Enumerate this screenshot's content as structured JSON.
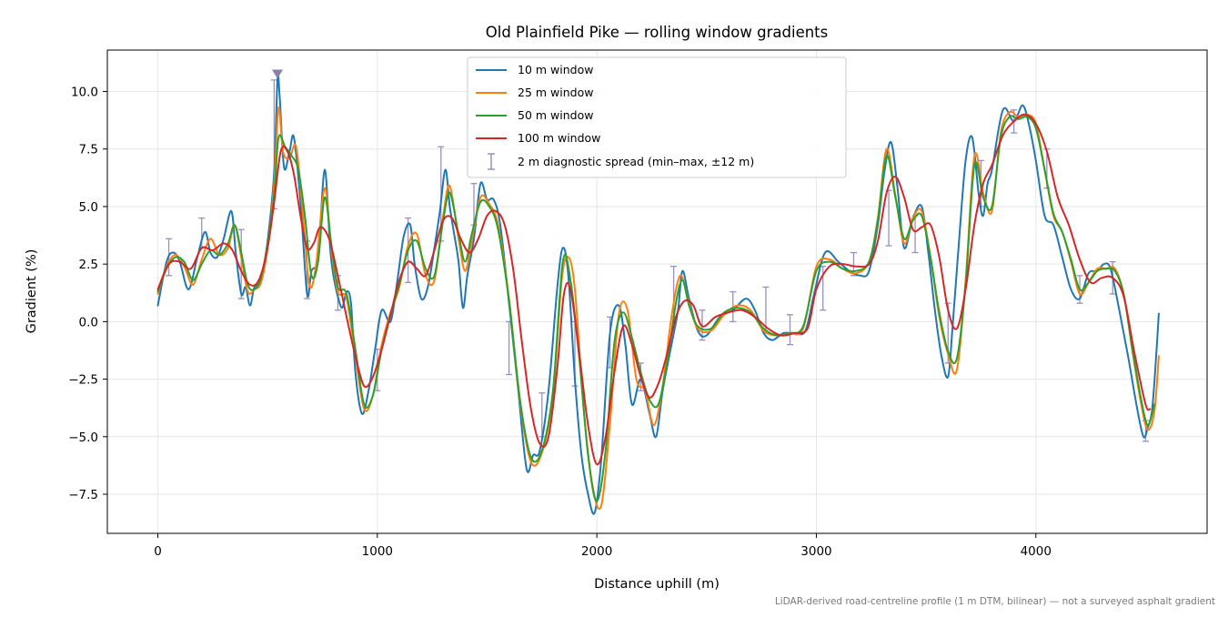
{
  "chart_data": {
    "type": "line",
    "title": "Old Plainfield Pike — rolling window gradients",
    "xlabel": "Distance uphill (m)",
    "ylabel": "Gradient (%)",
    "xlim": [
      -230,
      4780
    ],
    "ylim": [
      -9.2,
      11.8
    ],
    "xticks": [
      0,
      1000,
      2000,
      3000,
      4000
    ],
    "xtick_labels": [
      "0",
      "1000",
      "2000",
      "3000",
      "4000"
    ],
    "yticks": [
      -7.5,
      -5.0,
      -2.5,
      0.0,
      2.5,
      5.0,
      7.5,
      10.0
    ],
    "ytick_labels": [
      "−7.5",
      "−5.0",
      "−2.5",
      "0.0",
      "2.5",
      "5.0",
      "7.5",
      "10.0"
    ],
    "grid": true,
    "legend_position": "upper-center",
    "footnote": "LiDAR-derived road-centreline profile (1 m DTM, bilinear) — not a surveyed asphalt gradient",
    "series": [
      {
        "name": "10 m window",
        "color": "#1f77b4",
        "x": [
          0,
          40,
          70,
          100,
          140,
          180,
          215,
          240,
          270,
          300,
          335,
          355,
          380,
          400,
          420,
          440,
          470,
          500,
          530,
          545,
          555,
          575,
          600,
          620,
          650,
          680,
          700,
          730,
          760,
          785,
          800,
          820,
          840,
          860,
          880,
          900,
          930,
          960,
          990,
          1020,
          1060,
          1090,
          1120,
          1150,
          1170,
          1200,
          1230,
          1260,
          1285,
          1310,
          1330,
          1350,
          1370,
          1390,
          1410,
          1440,
          1470,
          1500,
          1530,
          1560,
          1600,
          1640,
          1680,
          1710,
          1740,
          1780,
          1820,
          1845,
          1870,
          1900,
          1930,
          1960,
          1990,
          2020,
          2060,
          2100,
          2130,
          2160,
          2200,
          2240,
          2270,
          2300,
          2340,
          2370,
          2390,
          2420,
          2460,
          2500,
          2560,
          2620,
          2680,
          2720,
          2760,
          2800,
          2850,
          2900,
          2950,
          2990,
          3040,
          3100,
          3150,
          3200,
          3240,
          3280,
          3310,
          3340,
          3370,
          3400,
          3440,
          3480,
          3510,
          3540,
          3570,
          3600,
          3620,
          3650,
          3680,
          3710,
          3740,
          3760,
          3780,
          3800,
          3850,
          3900,
          3940,
          3970,
          4000,
          4040,
          4080,
          4120,
          4160,
          4200,
          4240,
          4280,
          4310,
          4340,
          4380,
          4420,
          4460,
          4490,
          4510,
          4530,
          4550,
          4560
        ],
        "y": [
          0.7,
          2.6,
          3.0,
          2.6,
          1.4,
          2.8,
          3.9,
          3.0,
          2.8,
          3.6,
          4.8,
          3.0,
          1.2,
          1.5,
          0.7,
          1.5,
          1.8,
          3.5,
          6.5,
          10.5,
          9.8,
          6.7,
          7.4,
          8.0,
          5.2,
          1.2,
          2.2,
          2.8,
          6.6,
          3.2,
          2.0,
          1.1,
          0.6,
          1.3,
          0.8,
          -2.2,
          -4.0,
          -3.0,
          -1.2,
          0.5,
          0.0,
          1.7,
          3.7,
          4.2,
          2.5,
          1.0,
          1.5,
          3.2,
          4.8,
          6.6,
          5.0,
          3.8,
          2.6,
          0.6,
          2.0,
          3.6,
          6.0,
          5.3,
          5.3,
          4.2,
          0.8,
          -2.8,
          -6.4,
          -5.8,
          -5.6,
          -3.0,
          1.5,
          3.2,
          2.0,
          -2.5,
          -5.8,
          -7.5,
          -8.3,
          -6.0,
          -0.5,
          0.7,
          -1.0,
          -3.6,
          -2.5,
          -4.0,
          -5.0,
          -3.0,
          -1.0,
          0.5,
          2.2,
          1.0,
          -0.4,
          -0.6,
          0.2,
          0.5,
          1.0,
          0.5,
          -0.5,
          -0.8,
          -0.5,
          -0.5,
          -0.4,
          1.2,
          3.0,
          2.6,
          2.2,
          2.0,
          2.2,
          4.2,
          6.5,
          7.8,
          5.8,
          3.2,
          4.5,
          5.0,
          3.0,
          0.5,
          -1.5,
          -2.4,
          -0.3,
          3.5,
          7.0,
          8.0,
          5.5,
          4.6,
          6.0,
          6.6,
          9.2,
          8.7,
          9.4,
          8.5,
          7.0,
          4.6,
          4.2,
          2.8,
          1.4,
          1.0,
          2.1,
          2.2,
          2.5,
          2.3,
          0.5,
          -1.5,
          -3.7,
          -5.0,
          -4.6,
          -3.8,
          -1.2,
          0.35
        ]
      },
      {
        "name": "25 m window",
        "color": "#ff7f0e",
        "x": [
          0,
          40,
          80,
          120,
          160,
          200,
          240,
          280,
          320,
          350,
          380,
          410,
          440,
          470,
          500,
          530,
          550,
          570,
          600,
          630,
          660,
          690,
          720,
          760,
          790,
          820,
          860,
          900,
          940,
          980,
          1020,
          1060,
          1100,
          1140,
          1180,
          1220,
          1260,
          1300,
          1330,
          1370,
          1400,
          1430,
          1470,
          1510,
          1550,
          1600,
          1650,
          1700,
          1750,
          1800,
          1840,
          1870,
          1900,
          1940,
          1980,
          2020,
          2060,
          2100,
          2140,
          2180,
          2220,
          2260,
          2300,
          2340,
          2380,
          2420,
          2460,
          2520,
          2580,
          2640,
          2700,
          2760,
          2820,
          2880,
          2940,
          3000,
          3060,
          3120,
          3180,
          3240,
          3280,
          3320,
          3360,
          3400,
          3440,
          3480,
          3520,
          3560,
          3600,
          3640,
          3680,
          3720,
          3760,
          3800,
          3840,
          3880,
          3920,
          3960,
          4000,
          4040,
          4080,
          4120,
          4160,
          4200,
          4240,
          4280,
          4320,
          4360,
          4400,
          4440,
          4480,
          4510,
          4540,
          4560
        ],
        "y": [
          1.2,
          2.4,
          2.9,
          2.4,
          1.6,
          2.7,
          3.6,
          2.9,
          3.2,
          4.2,
          2.8,
          1.3,
          1.4,
          1.7,
          3.2,
          6.0,
          9.3,
          7.4,
          7.1,
          7.6,
          4.8,
          1.6,
          2.4,
          5.8,
          3.2,
          1.3,
          1.0,
          -1.5,
          -3.8,
          -3.2,
          -1.0,
          0.4,
          1.5,
          3.3,
          3.8,
          2.0,
          1.8,
          4.6,
          5.9,
          3.6,
          2.2,
          3.5,
          5.4,
          5.1,
          4.2,
          1.0,
          -3.5,
          -6.1,
          -5.7,
          -3.2,
          1.8,
          2.8,
          1.4,
          -3.8,
          -7.1,
          -8.0,
          -4.4,
          0.3,
          0.5,
          -2.5,
          -3.0,
          -4.5,
          -2.8,
          0.2,
          2.0,
          0.8,
          -0.3,
          -0.4,
          0.3,
          0.7,
          0.5,
          -0.4,
          -0.6,
          -0.5,
          -0.3,
          2.4,
          2.7,
          2.3,
          2.1,
          2.6,
          4.5,
          7.5,
          5.5,
          3.4,
          4.5,
          4.8,
          2.8,
          0.2,
          -1.4,
          -2.1,
          1.8,
          7.2,
          5.6,
          4.8,
          8.2,
          9.1,
          8.9,
          9.0,
          8.6,
          6.6,
          4.6,
          3.9,
          2.6,
          1.2,
          1.7,
          2.3,
          2.3,
          2.3,
          1.2,
          -1.3,
          -3.6,
          -4.7,
          -3.9,
          -1.5
        ]
      },
      {
        "name": "50 m window",
        "color": "#2ca02c",
        "x": [
          0,
          40,
          80,
          120,
          160,
          200,
          240,
          280,
          320,
          350,
          380,
          410,
          440,
          470,
          500,
          530,
          550,
          580,
          610,
          640,
          670,
          700,
          730,
          760,
          790,
          820,
          860,
          900,
          940,
          980,
          1020,
          1060,
          1100,
          1140,
          1180,
          1220,
          1260,
          1300,
          1330,
          1370,
          1400,
          1430,
          1470,
          1510,
          1550,
          1600,
          1650,
          1700,
          1750,
          1800,
          1845,
          1880,
          1920,
          1960,
          2000,
          2040,
          2080,
          2120,
          2160,
          2200,
          2240,
          2280,
          2320,
          2360,
          2390,
          2420,
          2460,
          2520,
          2580,
          2640,
          2700,
          2760,
          2820,
          2880,
          2940,
          3000,
          3060,
          3120,
          3180,
          3240,
          3280,
          3320,
          3360,
          3400,
          3440,
          3480,
          3520,
          3560,
          3600,
          3640,
          3680,
          3720,
          3760,
          3800,
          3840,
          3880,
          3920,
          3960,
          4000,
          4040,
          4080,
          4120,
          4160,
          4200,
          4240,
          4280,
          4320,
          4360,
          4400,
          4440,
          4480,
          4510,
          4540
        ],
        "y": [
          1.3,
          2.3,
          2.8,
          2.6,
          1.8,
          2.5,
          3.1,
          2.9,
          3.4,
          4.2,
          3.0,
          1.6,
          1.4,
          1.9,
          3.4,
          5.5,
          8.0,
          7.6,
          7.2,
          6.6,
          4.6,
          2.0,
          2.6,
          5.4,
          3.4,
          1.5,
          1.2,
          -1.2,
          -3.6,
          -3.2,
          -1.2,
          0.3,
          1.6,
          3.1,
          3.5,
          2.3,
          2.0,
          4.4,
          5.6,
          3.8,
          2.6,
          3.8,
          5.2,
          5.0,
          4.0,
          0.9,
          -3.4,
          -5.9,
          -5.6,
          -3.0,
          2.6,
          1.8,
          -1.6,
          -5.8,
          -7.8,
          -5.6,
          -0.9,
          0.4,
          -0.7,
          -2.2,
          -3.4,
          -3.6,
          -1.8,
          0.8,
          1.8,
          0.7,
          -0.2,
          -0.3,
          0.4,
          0.6,
          0.4,
          -0.3,
          -0.6,
          -0.5,
          -0.2,
          2.2,
          2.6,
          2.3,
          2.2,
          2.6,
          4.4,
          7.2,
          5.4,
          3.6,
          4.4,
          4.6,
          2.8,
          0.4,
          -1.3,
          -1.6,
          1.6,
          6.8,
          5.4,
          5.0,
          8.0,
          8.9,
          8.8,
          8.9,
          8.4,
          6.6,
          4.7,
          3.9,
          2.7,
          1.4,
          1.7,
          2.2,
          2.3,
          2.2,
          1.2,
          -1.2,
          -3.4,
          -4.5,
          -3.6
        ]
      },
      {
        "name": "100 m window",
        "color": "#d62728",
        "x": [
          0,
          50,
          100,
          150,
          200,
          250,
          300,
          340,
          380,
          420,
          460,
          500,
          530,
          560,
          590,
          620,
          650,
          680,
          710,
          740,
          780,
          820,
          860,
          900,
          940,
          980,
          1020,
          1060,
          1100,
          1140,
          1180,
          1220,
          1260,
          1300,
          1340,
          1380,
          1420,
          1460,
          1500,
          1540,
          1580,
          1620,
          1660,
          1700,
          1740,
          1780,
          1820,
          1850,
          1880,
          1920,
          1960,
          2000,
          2040,
          2080,
          2120,
          2160,
          2200,
          2240,
          2280,
          2320,
          2360,
          2400,
          2440,
          2480,
          2540,
          2600,
          2660,
          2720,
          2780,
          2840,
          2900,
          2960,
          3000,
          3060,
          3120,
          3180,
          3240,
          3280,
          3320,
          3360,
          3400,
          3440,
          3480,
          3520,
          3560,
          3600,
          3640,
          3680,
          3720,
          3760,
          3800,
          3850,
          3900,
          3950,
          4000,
          4050,
          4100,
          4150,
          4200,
          4250,
          4300,
          4350,
          4400,
          4450,
          4500,
          4520
        ],
        "y": [
          1.4,
          2.5,
          2.6,
          2.3,
          3.2,
          3.1,
          3.4,
          3.1,
          2.2,
          1.6,
          1.8,
          3.2,
          5.2,
          7.4,
          7.4,
          6.4,
          4.6,
          3.2,
          3.4,
          4.1,
          3.6,
          2.0,
          0.2,
          -1.5,
          -2.8,
          -2.4,
          -1.2,
          0.3,
          1.8,
          2.6,
          2.3,
          2.0,
          3.1,
          4.4,
          4.5,
          3.6,
          3.0,
          3.6,
          4.6,
          4.8,
          4.2,
          2.2,
          -1.0,
          -3.8,
          -5.3,
          -5.0,
          -2.0,
          1.2,
          1.4,
          -1.4,
          -4.5,
          -6.2,
          -5.0,
          -2.2,
          -0.2,
          -1.0,
          -2.4,
          -3.3,
          -2.7,
          -1.4,
          0.2,
          0.9,
          0.7,
          -0.2,
          0.2,
          0.4,
          0.5,
          0.2,
          -0.3,
          -0.6,
          -0.5,
          -0.3,
          1.4,
          2.4,
          2.5,
          2.4,
          2.5,
          3.5,
          5.6,
          6.3,
          5.4,
          4.0,
          4.1,
          4.2,
          2.8,
          0.5,
          -0.3,
          1.4,
          4.2,
          6.0,
          6.8,
          8.1,
          8.7,
          9.0,
          8.6,
          7.4,
          5.4,
          4.2,
          2.7,
          1.7,
          1.9,
          1.9,
          1.1,
          -1.4,
          -3.6,
          -3.8
        ]
      }
    ],
    "diagnostic_spread": {
      "name": "2 m diagnostic spread (min–max, ±12 m)",
      "color": "#9a8fbf",
      "bars": [
        {
          "x": 50,
          "low": 2.0,
          "high": 3.6
        },
        {
          "x": 200,
          "low": 3.2,
          "high": 4.5
        },
        {
          "x": 380,
          "low": 1.0,
          "high": 4.0
        },
        {
          "x": 530,
          "low": 4.9,
          "high": 10.5
        },
        {
          "x": 680,
          "low": 1.0,
          "high": 3.5
        },
        {
          "x": 820,
          "low": 0.5,
          "high": 2.0
        },
        {
          "x": 1000,
          "low": -3.0,
          "high": -1.2
        },
        {
          "x": 1140,
          "low": 1.7,
          "high": 4.5
        },
        {
          "x": 1290,
          "low": 3.5,
          "high": 7.6
        },
        {
          "x": 1440,
          "low": 4.2,
          "high": 6.0
        },
        {
          "x": 1600,
          "low": -2.3,
          "high": 0.0
        },
        {
          "x": 1750,
          "low": -5.0,
          "high": -3.1
        },
        {
          "x": 1900,
          "low": -2.8,
          "high": 0.0
        },
        {
          "x": 2060,
          "low": -2.0,
          "high": 0.2
        },
        {
          "x": 2200,
          "low": -3.0,
          "high": -1.8
        },
        {
          "x": 2350,
          "low": 0.2,
          "high": 2.4
        },
        {
          "x": 2480,
          "low": -0.8,
          "high": 0.5
        },
        {
          "x": 2620,
          "low": 0.0,
          "high": 1.3
        },
        {
          "x": 2770,
          "low": -0.5,
          "high": 1.5
        },
        {
          "x": 2880,
          "low": -1.0,
          "high": 0.3
        },
        {
          "x": 3030,
          "low": 0.5,
          "high": 2.4
        },
        {
          "x": 3170,
          "low": 2.0,
          "high": 3.0
        },
        {
          "x": 3330,
          "low": 3.3,
          "high": 5.7
        },
        {
          "x": 3450,
          "low": 3.0,
          "high": 4.6
        },
        {
          "x": 3600,
          "low": -1.8,
          "high": 0.8
        },
        {
          "x": 3750,
          "low": 5.0,
          "high": 7.0
        },
        {
          "x": 3900,
          "low": 8.2,
          "high": 9.2
        },
        {
          "x": 4050,
          "low": 5.8,
          "high": 7.5
        },
        {
          "x": 4200,
          "low": 0.8,
          "high": 2.0
        },
        {
          "x": 4350,
          "low": 1.2,
          "high": 2.6
        },
        {
          "x": 4500,
          "low": -5.2,
          "high": -4.3
        }
      ]
    },
    "max_marker": {
      "x": 545,
      "y": 10.75,
      "color": "#8a7fa8"
    }
  }
}
